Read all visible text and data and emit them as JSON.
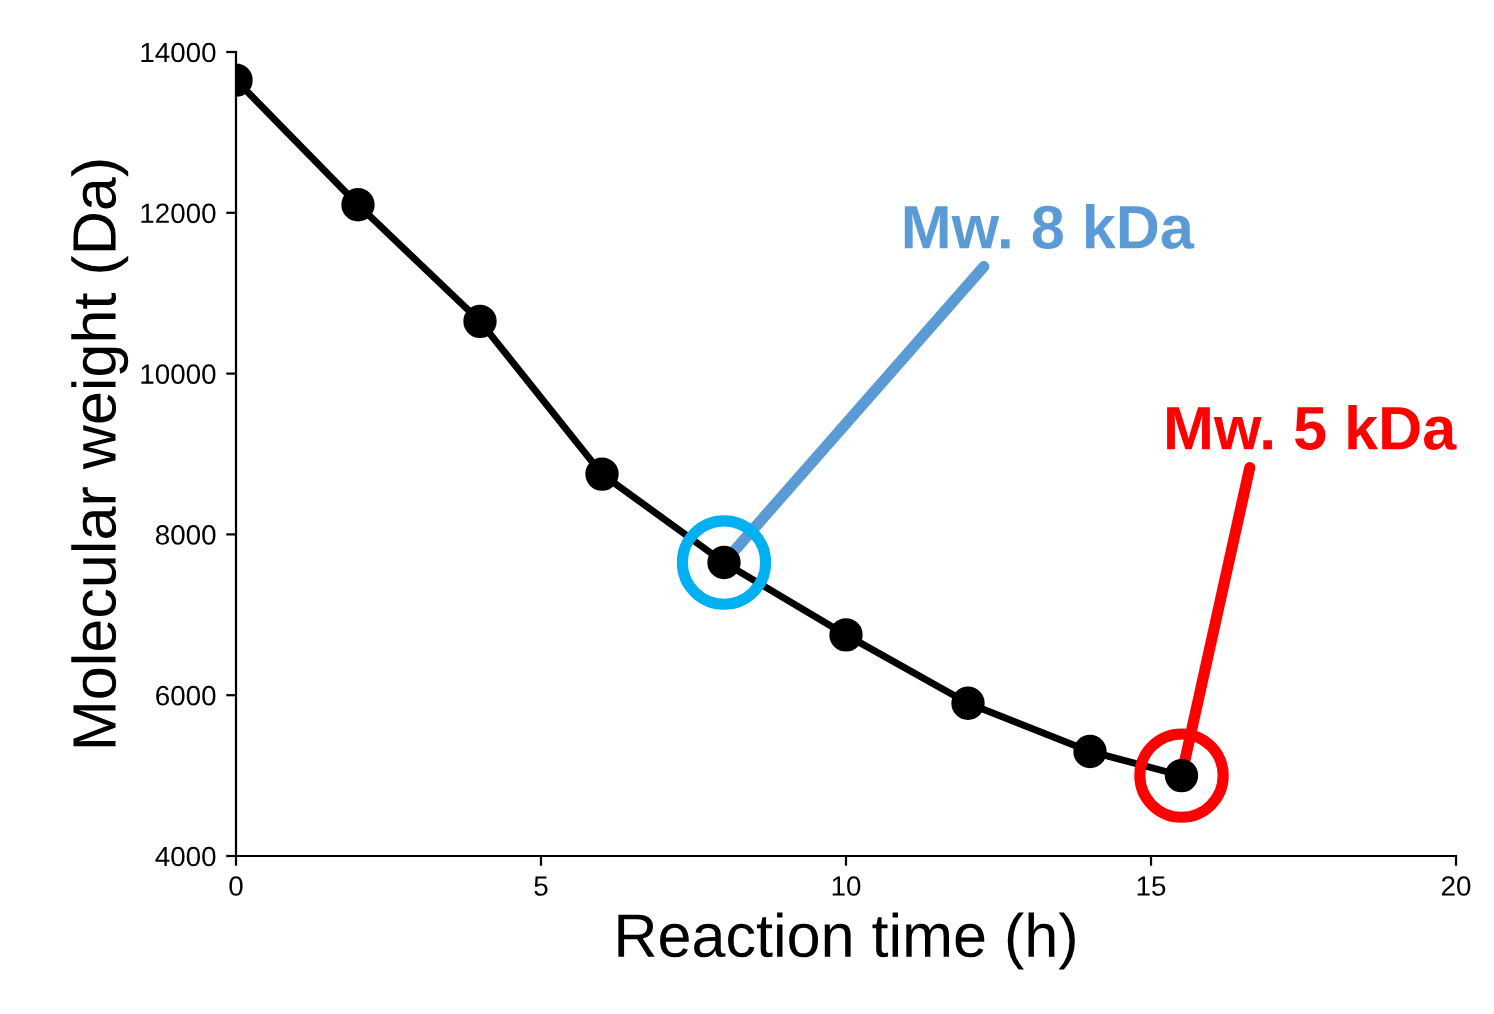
{
  "chart_data": {
    "type": "line",
    "xlabel": "Reaction time (h)",
    "ylabel": "Molecular weight (Da)",
    "x": [
      0,
      2,
      4,
      6,
      8,
      10,
      12,
      14,
      15.5
    ],
    "series": [
      {
        "color": "#000000",
        "values": [
          13650,
          12100,
          10650,
          8750,
          7650,
          6750,
          5900,
          5300,
          5000
        ]
      }
    ],
    "xlim": [
      0,
      20
    ],
    "xticks": [
      0,
      5,
      10,
      15,
      20
    ],
    "ylim": [
      4000,
      14000
    ],
    "yticks": [
      4000,
      6000,
      8000,
      10000,
      12000,
      14000
    ],
    "marker": "circle",
    "line_style": "solid",
    "grid": false,
    "legend": false,
    "annotations": [
      {
        "text": "Mw. 8 kDa",
        "x": 8,
        "y": 7650
      },
      {
        "text": "Mw. 5 kDa",
        "x": 15.5,
        "y": 5000
      }
    ]
  }
}
